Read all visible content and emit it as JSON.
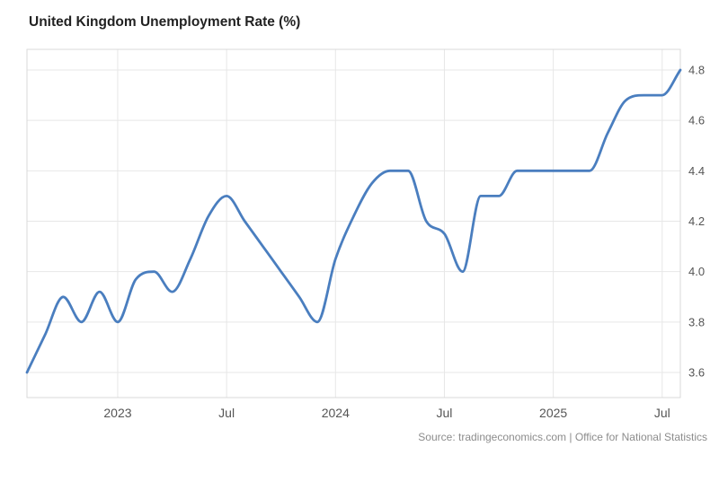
{
  "title": "United Kingdom Unemployment Rate (%)",
  "source": "Source: tradingeconomics.com | Office for National Statistics",
  "chart_data": {
    "type": "line",
    "title": "United Kingdom Unemployment Rate (%)",
    "xlabel": "",
    "ylabel": "",
    "x": [
      "2022-08",
      "2022-09",
      "2022-10",
      "2022-11",
      "2022-12",
      "2023-01",
      "2023-02",
      "2023-03",
      "2023-04",
      "2023-05",
      "2023-06",
      "2023-07",
      "2023-08",
      "2023-09",
      "2023-10",
      "2023-11",
      "2023-12",
      "2024-01",
      "2024-02",
      "2024-03",
      "2024-04",
      "2024-05",
      "2024-06",
      "2024-07",
      "2024-08",
      "2024-09",
      "2024-10",
      "2024-11",
      "2024-12",
      "2025-01",
      "2025-02",
      "2025-03",
      "2025-04",
      "2025-05",
      "2025-06",
      "2025-07",
      "2025-08"
    ],
    "values": [
      3.6,
      3.75,
      3.9,
      3.8,
      3.92,
      3.8,
      3.97,
      4.0,
      3.92,
      4.05,
      4.22,
      4.3,
      4.2,
      4.1,
      4.0,
      3.9,
      3.8,
      4.05,
      4.22,
      4.35,
      4.4,
      4.4,
      4.2,
      4.15,
      4.0,
      4.3,
      4.3,
      4.4,
      4.4,
      4.4,
      4.4,
      4.4,
      4.55,
      4.68,
      4.7,
      4.7,
      4.8
    ],
    "x_ticks": [
      {
        "index": 5,
        "label": "2023"
      },
      {
        "index": 11,
        "label": "Jul"
      },
      {
        "index": 17,
        "label": "2024"
      },
      {
        "index": 23,
        "label": "Jul"
      },
      {
        "index": 29,
        "label": "2025"
      },
      {
        "index": 35,
        "label": "Jul"
      }
    ],
    "y_ticks": [
      "4.8",
      "4.6",
      "4.4",
      "4.2",
      "4.0",
      "3.8",
      "3.6"
    ],
    "y_range": [
      3.6,
      4.8
    ],
    "grid": true,
    "legend_position": "none",
    "y_axis_position": "right",
    "line_color": "#4a7ebf",
    "grid_color": "#e7e7e7",
    "border_color": "#d9d9d9",
    "axis_text_color": "#555555"
  }
}
